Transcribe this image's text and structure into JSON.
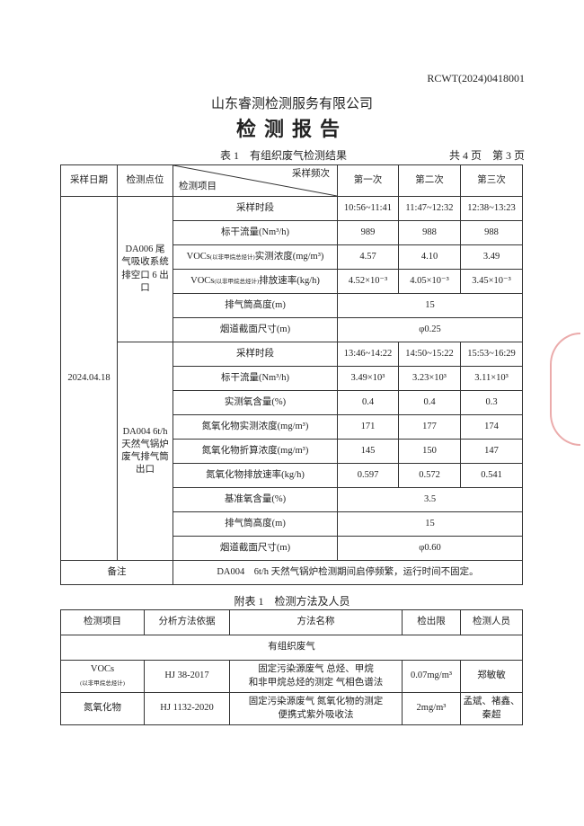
{
  "report_no": "RCWT(2024)0418001",
  "company": "山东睿测检测服务有限公司",
  "title": "检测报告",
  "table1": {
    "caption": "表 1　有组织废气检测结果",
    "page_info": "共 4 页　第 3 页",
    "headers": {
      "date": "采样日期",
      "point": "检测点位",
      "freq": "采样频次",
      "item": "检测项目",
      "c1": "第一次",
      "c2": "第二次",
      "c3": "第三次"
    },
    "date": "2024.04.18",
    "site1": {
      "name": "DA006 尾气吸收系统排空口 6 出口",
      "rows": [
        {
          "item": "采样时段",
          "v": [
            "10:56~11:41",
            "11:47~12:32",
            "12:38~13:23"
          ]
        },
        {
          "item": "标干流量(Nm³/h)",
          "v": [
            "989",
            "988",
            "988"
          ]
        },
        {
          "item": "VOCs",
          "note": "(以非甲烷总烃计)",
          "item2": "实测浓度(mg/m³)",
          "v": [
            "4.57",
            "4.10",
            "3.49"
          ]
        },
        {
          "item": "VOCs",
          "note": "(以非甲烷总烃计)",
          "item2": "排放速率(kg/h)",
          "v": [
            "4.52×10⁻³",
            "4.05×10⁻³",
            "3.45×10⁻³"
          ]
        },
        {
          "item": "排气筒高度(m)",
          "merged": "15"
        },
        {
          "item": "烟道截面尺寸(m)",
          "merged": "φ0.25"
        }
      ]
    },
    "site2": {
      "name": "DA004 6t/h 天然气锅炉废气排气筒出口",
      "rows": [
        {
          "item": "采样时段",
          "v": [
            "13:46~14:22",
            "14:50~15:22",
            "15:53~16:29"
          ]
        },
        {
          "item": "标干流量(Nm³/h)",
          "v": [
            "3.49×10³",
            "3.23×10³",
            "3.11×10³"
          ]
        },
        {
          "item": "实测氧含量(%)",
          "v": [
            "0.4",
            "0.4",
            "0.3"
          ]
        },
        {
          "item": "氮氧化物实测浓度(mg/m³)",
          "v": [
            "171",
            "177",
            "174"
          ]
        },
        {
          "item": "氮氧化物折算浓度(mg/m³)",
          "v": [
            "145",
            "150",
            "147"
          ]
        },
        {
          "item": "氮氧化物排放速率(kg/h)",
          "v": [
            "0.597",
            "0.572",
            "0.541"
          ]
        },
        {
          "item": "基准氧含量(%)",
          "merged": "3.5"
        },
        {
          "item": "排气筒高度(m)",
          "merged": "15"
        },
        {
          "item": "烟道截面尺寸(m)",
          "merged": "φ0.60"
        }
      ]
    },
    "remark_label": "备注",
    "remark": "DA004　6t/h 天然气锅炉检测期间启停频繁，运行时间不固定。"
  },
  "table2": {
    "caption": "附表 1　检测方法及人员",
    "headers": [
      "检测项目",
      "分析方法依据",
      "方法名称",
      "检出限",
      "检测人员"
    ],
    "section": "有组织废气",
    "rows": [
      {
        "item": "VOCs",
        "note": "(以非甲烷总烃计)",
        "basis": "HJ 38-2017",
        "method1": "固定污染源废气 总烃、甲烷",
        "method2": "和非甲烷总烃的测定 气相色谱法",
        "limit": "0.07mg/m³",
        "staff": "郑敏敏"
      },
      {
        "item": "氮氧化物",
        "basis": "HJ 1132-2020",
        "method1": "固定污染源废气 氮氧化物的测定",
        "method2": "便携式紫外吸收法",
        "limit": "2mg/m³",
        "staff": "孟斌、褚鑫、秦超"
      }
    ]
  }
}
